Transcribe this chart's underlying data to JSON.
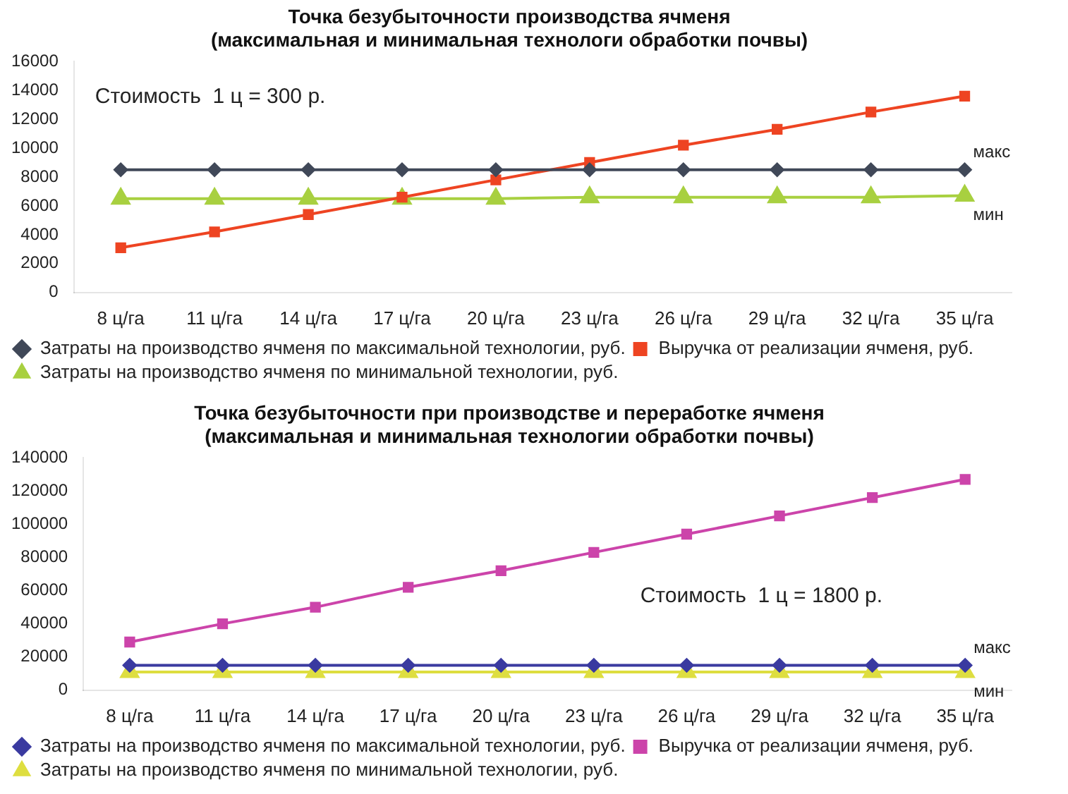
{
  "chart_data": [
    {
      "type": "line",
      "title": "Точка безубыточности производства ячменя",
      "subtitle": "(максимальная и минимальная технологи обработки почвы)",
      "categories": [
        "8 ц/га",
        "11 ц/га",
        "14 ц/га",
        "17 ц/га",
        "20 ц/га",
        "23 ц/га",
        "26 ц/га",
        "29 ц/га",
        "32 ц/га",
        "35 ц/га"
      ],
      "series": [
        {
          "name": "Затраты на производство ячменя по максимальной технологии, руб.",
          "color": "#404858",
          "marker": "diamond",
          "values": [
            8500,
            8500,
            8500,
            8500,
            8500,
            8500,
            8500,
            8500,
            8500,
            8500
          ]
        },
        {
          "name": "Выручка от реализации ячменя, руб.",
          "color": "#ee4422",
          "marker": "square",
          "values": [
            3100,
            4200,
            5400,
            6600,
            7800,
            9000,
            10200,
            11300,
            12500,
            13600
          ]
        },
        {
          "name": "Затраты на производство ячменя по минимальной технологии, руб.",
          "color": "#a8d040",
          "marker": "triangle",
          "values": [
            6500,
            6500,
            6500,
            6500,
            6500,
            6600,
            6600,
            6600,
            6600,
            6700
          ]
        }
      ],
      "ylim": [
        0,
        16000
      ],
      "yticks": [
        0,
        2000,
        4000,
        6000,
        8000,
        10000,
        12000,
        14000,
        16000
      ],
      "grid": false,
      "legend": "bottom",
      "annotations": [
        "Стоимость  1 ц = 300 р.",
        {
          "text": "макс",
          "x": "35 ц/га",
          "y": 8500
        },
        {
          "text": "мин",
          "x": "35 ц/га",
          "y": 6700
        }
      ]
    },
    {
      "type": "line",
      "title": "Точка безубыточности при производстве и переработке ячменя",
      "subtitle": "(максимальная и минимальная технологии обработки почвы)",
      "categories": [
        "8 ц/га",
        "11 ц/га",
        "14 ц/га",
        "17 ц/га",
        "20 ц/га",
        "23 ц/га",
        "26 ц/га",
        "29 ц/га",
        "32 ц/га",
        "35 ц/га"
      ],
      "series": [
        {
          "name": "Затраты на производство ячменя по максимальной технологии, руб.",
          "color": "#3a3aa0",
          "marker": "diamond",
          "values": [
            15000,
            15000,
            15000,
            15000,
            15000,
            15000,
            15000,
            15000,
            15000,
            15000
          ]
        },
        {
          "name": "Выручка от реализации ячменя, руб.",
          "color": "#cc44aa",
          "marker": "square",
          "values": [
            29000,
            40000,
            50000,
            62000,
            72000,
            83000,
            94000,
            105000,
            116000,
            127000
          ]
        },
        {
          "name": "Затраты на производство ячменя по минимальной технологии, руб.",
          "color": "#dede40",
          "marker": "triangle",
          "values": [
            11000,
            11000,
            11000,
            11000,
            11000,
            11000,
            11000,
            11000,
            11000,
            11000
          ]
        }
      ],
      "ylim": [
        0,
        140000
      ],
      "yticks": [
        0,
        20000,
        40000,
        60000,
        80000,
        100000,
        120000,
        140000
      ],
      "grid": false,
      "legend": "bottom",
      "annotations": [
        "Стоимость  1 ц = 1800 р.",
        {
          "text": "макс",
          "x": "35 ц/га",
          "y": 15000
        },
        {
          "text": "мин",
          "x": "35 ц/га",
          "y": 11000
        }
      ]
    }
  ]
}
